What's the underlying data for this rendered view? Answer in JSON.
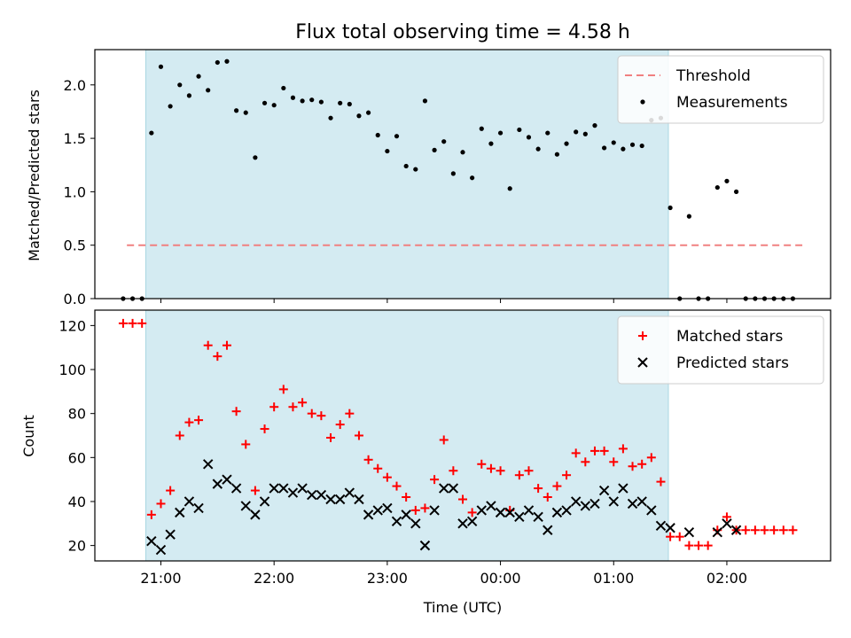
{
  "chart_data": [
    {
      "type": "scatter",
      "title": "Flux total observing time = 4.58 h",
      "ylabel": "Matched/Predicted stars",
      "xlabel": "",
      "xlim": [
        "20:25",
        "02:55"
      ],
      "ylim": [
        0,
        2.33
      ],
      "yticks": [
        0.0,
        0.5,
        1.0,
        1.5,
        2.0
      ],
      "xticks": [
        "21:00",
        "22:00",
        "23:00",
        "00:00",
        "01:00",
        "02:00"
      ],
      "shaded_region": {
        "start": "20:52",
        "end": "01:29",
        "color": "#d4ebf2"
      },
      "legend": {
        "placement": "top-right",
        "entries": [
          "Threshold",
          "Measurements"
        ]
      },
      "threshold": {
        "name": "Threshold",
        "y": 0.5,
        "x_start": "20:42",
        "x_end": "02:40",
        "color": "#f08080"
      },
      "series": [
        {
          "name": "Measurements",
          "x": [
            "20:40",
            "20:45",
            "20:50",
            "20:55",
            "21:00",
            "21:05",
            "21:10",
            "21:15",
            "21:20",
            "21:25",
            "21:30",
            "21:35",
            "21:40",
            "21:45",
            "21:50",
            "21:55",
            "22:00",
            "22:05",
            "22:10",
            "22:15",
            "22:20",
            "22:25",
            "22:30",
            "22:35",
            "22:40",
            "22:45",
            "22:50",
            "22:55",
            "23:00",
            "23:05",
            "23:10",
            "23:15",
            "23:20",
            "23:25",
            "23:30",
            "23:35",
            "23:40",
            "23:45",
            "23:50",
            "23:55",
            "00:00",
            "00:05",
            "00:10",
            "00:15",
            "00:20",
            "00:25",
            "00:30",
            "00:35",
            "00:40",
            "00:45",
            "00:50",
            "00:55",
            "01:00",
            "01:05",
            "01:10",
            "01:15",
            "01:20",
            "01:25",
            "01:30",
            "01:35",
            "01:40",
            "01:45",
            "01:50",
            "01:55",
            "02:00",
            "02:05",
            "02:10",
            "02:15",
            "02:20",
            "02:25",
            "02:30",
            "02:35"
          ],
          "y": [
            0.0,
            0.0,
            0.0,
            1.55,
            2.17,
            1.8,
            2.0,
            1.9,
            2.08,
            1.95,
            2.21,
            2.22,
            1.76,
            1.74,
            1.32,
            1.83,
            1.81,
            1.97,
            1.88,
            1.85,
            1.86,
            1.84,
            1.69,
            1.83,
            1.82,
            1.71,
            1.74,
            1.53,
            1.38,
            1.52,
            1.24,
            1.21,
            1.85,
            1.39,
            1.47,
            1.17,
            1.37,
            1.13,
            1.59,
            1.45,
            1.55,
            1.03,
            1.58,
            1.51,
            1.4,
            1.55,
            1.35,
            1.45,
            1.56,
            1.54,
            1.62,
            1.41,
            1.46,
            1.4,
            1.44,
            1.43,
            1.67,
            1.69,
            0.85,
            0.0,
            0.77,
            0.0,
            0.0,
            1.04,
            1.1,
            1.0,
            0.0,
            0.0,
            0.0,
            0.0,
            0.0,
            0.0
          ]
        }
      ]
    },
    {
      "type": "scatter",
      "title": "",
      "ylabel": "Count",
      "xlabel": "Time (UTC)",
      "xlim": [
        "20:25",
        "02:55"
      ],
      "ylim": [
        13,
        127
      ],
      "yticks": [
        20,
        40,
        60,
        80,
        100,
        120
      ],
      "xticks": [
        "21:00",
        "22:00",
        "23:00",
        "00:00",
        "01:00",
        "02:00"
      ],
      "shaded_region": {
        "start": "20:52",
        "end": "01:29",
        "color": "#d4ebf2"
      },
      "legend": {
        "placement": "top-right",
        "entries": [
          "Matched stars",
          "Predicted stars"
        ]
      },
      "series": [
        {
          "name": "Matched stars",
          "marker": "plus",
          "color": "#ff0000",
          "x": [
            "20:40",
            "20:45",
            "20:50",
            "20:55",
            "21:00",
            "21:05",
            "21:10",
            "21:15",
            "21:20",
            "21:25",
            "21:30",
            "21:35",
            "21:40",
            "21:45",
            "21:50",
            "21:55",
            "22:00",
            "22:05",
            "22:10",
            "22:15",
            "22:20",
            "22:25",
            "22:30",
            "22:35",
            "22:40",
            "22:45",
            "22:50",
            "22:55",
            "23:00",
            "23:05",
            "23:10",
            "23:15",
            "23:20",
            "23:25",
            "23:30",
            "23:35",
            "23:40",
            "23:45",
            "23:50",
            "23:55",
            "00:00",
            "00:05",
            "00:10",
            "00:15",
            "00:20",
            "00:25",
            "00:30",
            "00:35",
            "00:40",
            "00:45",
            "00:50",
            "00:55",
            "01:00",
            "01:05",
            "01:10",
            "01:15",
            "01:20",
            "01:25",
            "01:30",
            "01:35",
            "01:40",
            "01:45",
            "01:50",
            "01:55",
            "02:00",
            "02:05",
            "02:10",
            "02:15",
            "02:20",
            "02:25",
            "02:30",
            "02:35"
          ],
          "y": [
            121,
            121,
            121,
            34,
            39,
            45,
            70,
            76,
            77,
            111,
            106,
            111,
            81,
            66,
            45,
            73,
            83,
            91,
            83,
            85,
            80,
            79,
            69,
            75,
            80,
            70,
            59,
            55,
            51,
            47,
            42,
            36,
            37,
            50,
            68,
            54,
            41,
            35,
            57,
            55,
            54,
            36,
            52,
            54,
            46,
            42,
            47,
            52,
            62,
            58,
            63,
            63,
            58,
            64,
            56,
            57,
            60,
            49,
            24,
            24,
            20,
            20,
            20,
            27,
            33,
            27,
            27,
            27,
            27,
            27,
            27,
            27
          ]
        },
        {
          "name": "Predicted stars",
          "marker": "x",
          "color": "#000000",
          "x": [
            "20:55",
            "21:00",
            "21:05",
            "21:10",
            "21:15",
            "21:20",
            "21:25",
            "21:30",
            "21:35",
            "21:40",
            "21:45",
            "21:50",
            "21:55",
            "22:00",
            "22:05",
            "22:10",
            "22:15",
            "22:20",
            "22:25",
            "22:30",
            "22:35",
            "22:40",
            "22:45",
            "22:50",
            "22:55",
            "23:00",
            "23:05",
            "23:10",
            "23:15",
            "23:20",
            "23:25",
            "23:30",
            "23:35",
            "23:40",
            "23:45",
            "23:50",
            "23:55",
            "00:00",
            "00:05",
            "00:10",
            "00:15",
            "00:20",
            "00:25",
            "00:30",
            "00:35",
            "00:40",
            "00:45",
            "00:50",
            "00:55",
            "01:00",
            "01:05",
            "01:10",
            "01:15",
            "01:20",
            "01:25",
            "01:30",
            "01:40",
            "01:55",
            "02:00",
            "02:05"
          ],
          "y": [
            22,
            18,
            25,
            35,
            40,
            37,
            57,
            48,
            50,
            46,
            38,
            34,
            40,
            46,
            46,
            44,
            46,
            43,
            43,
            41,
            41,
            44,
            41,
            34,
            36,
            37,
            31,
            34,
            30,
            20,
            36,
            46,
            46,
            30,
            31,
            36,
            38,
            35,
            35,
            33,
            36,
            33,
            27,
            35,
            36,
            40,
            38,
            39,
            45,
            40,
            46,
            39,
            40,
            36,
            29,
            28,
            26,
            26,
            30,
            27
          ]
        }
      ]
    }
  ]
}
